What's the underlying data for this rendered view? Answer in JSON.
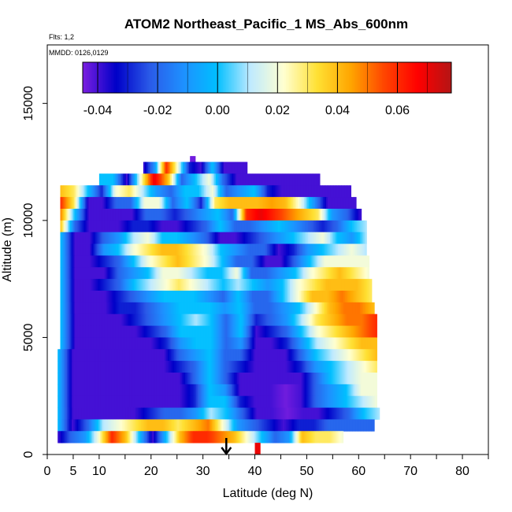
{
  "chart_data": {
    "type": "heatmap",
    "title": "ATOM2 Northeast_Pacific_1 MS_Abs_600nm",
    "flights_label": "Flts: 1,2",
    "dates_label": "MMDD: 0126,0129",
    "xlabel": "Latitude (deg N)",
    "ylabel": "Altitude (m)",
    "xlim": [
      0,
      85
    ],
    "ylim": [
      0,
      17500
    ],
    "xticks": [
      0,
      5,
      10,
      20,
      30,
      40,
      50,
      60,
      70,
      80
    ],
    "xtick_labels": [
      "0",
      "5",
      "10",
      "20",
      "30",
      "40",
      "50",
      "60",
      "70",
      "80"
    ],
    "yticks": [
      0,
      5000,
      10000,
      15000
    ],
    "ytick_labels": [
      "0",
      "5000",
      "10000",
      "15000"
    ],
    "colorbar": {
      "range": [
        -0.045,
        0.078
      ],
      "ticks": [
        -0.04,
        -0.02,
        0.0,
        0.02,
        0.04,
        0.06
      ],
      "tick_labels": [
        "-0.04",
        "-0.02",
        "0.00",
        "0.02",
        "0.04",
        "0.06"
      ],
      "colors": [
        "#7b1fe0",
        "#0000c8",
        "#2a5ae8",
        "#1e90ff",
        "#00bfff",
        "#bfeaff",
        "#ffffd0",
        "#ffe033",
        "#ffa500",
        "#ff4500",
        "#ff0000",
        "#b41414"
      ]
    },
    "marker": {
      "x": 34.5,
      "label": "arrow"
    },
    "rows": [
      {
        "alt": 12500,
        "x0": 27.5,
        "x1": 28.5,
        "v": [
          -0.044
        ]
      },
      {
        "alt": 12250,
        "x0": 18.5,
        "x1": 38.5,
        "v": [
          -0.04,
          -0.01,
          0.06,
          0.02,
          -0.03,
          -0.04,
          0.0,
          -0.04,
          -0.04,
          -0.04
        ]
      },
      {
        "alt": 11750,
        "x0": 10,
        "x1": 52.5,
        "v": [
          0.0,
          0.0,
          -0.04,
          0.02,
          0.07,
          0.04,
          -0.02,
          0.0,
          0.02,
          -0.02,
          -0.04,
          -0.04,
          -0.04,
          -0.04,
          -0.04,
          -0.04,
          -0.04
        ]
      },
      {
        "alt": 11250,
        "x0": 2.5,
        "x1": 58.5,
        "v": [
          0.04,
          0.03,
          0.0,
          -0.03,
          0.02,
          0.03,
          0.01,
          -0.01,
          -0.02,
          0.0,
          0.0,
          0.02,
          -0.02,
          -0.01,
          0.0,
          -0.03,
          -0.04,
          -0.04,
          -0.04,
          -0.04,
          -0.04,
          -0.04
        ]
      },
      {
        "alt": 10750,
        "x0": 2.5,
        "x1": 59.5,
        "v": [
          0.06,
          0.03,
          -0.04,
          -0.04,
          -0.02,
          -0.02,
          0.02,
          0.02,
          -0.02,
          0.0,
          -0.03,
          0.03,
          0.04,
          0.04,
          0.04,
          0.045,
          0.04,
          0.02,
          -0.01,
          -0.04,
          -0.04,
          -0.04
        ]
      },
      {
        "alt": 10250,
        "x0": 2.5,
        "x1": 60.5,
        "v": [
          0.05,
          0.0,
          -0.04,
          -0.04,
          -0.04,
          -0.04,
          -0.02,
          -0.02,
          -0.03,
          -0.02,
          -0.01,
          0.0,
          -0.02,
          0.06,
          0.07,
          0.06,
          0.05,
          0.04,
          0.03,
          -0.01,
          -0.02,
          -0.04
        ]
      },
      {
        "alt": 9750,
        "x0": 2.5,
        "x1": 61.5,
        "v": [
          0.04,
          -0.02,
          -0.04,
          -0.04,
          -0.04,
          -0.03,
          -0.03,
          -0.04,
          -0.04,
          -0.03,
          -0.02,
          0.0,
          -0.02,
          -0.02,
          -0.01,
          0.0,
          -0.01,
          -0.02,
          -0.03,
          -0.02,
          0.0,
          0.01
        ]
      },
      {
        "alt": 9250,
        "x0": 2.5,
        "x1": 61.5,
        "v": [
          0.0,
          -0.04,
          -0.04,
          -0.02,
          -0.01,
          0.01,
          0.02,
          0.0,
          0.0,
          -0.01,
          -0.02,
          -0.04,
          -0.04,
          -0.03,
          -0.02,
          -0.01,
          0.0,
          0.01,
          0.02,
          0.0,
          -0.01,
          0.01
        ]
      },
      {
        "alt": 8750,
        "x0": 2.5,
        "x1": 61.5,
        "v": [
          0.0,
          -0.04,
          -0.04,
          -0.01,
          0.0,
          0.02,
          0.03,
          0.04,
          0.04,
          0.03,
          0.02,
          0.0,
          -0.01,
          -0.02,
          -0.02,
          -0.04,
          -0.03,
          -0.01,
          0.0,
          0.01,
          0.02,
          0.01
        ]
      },
      {
        "alt": 8250,
        "x0": 2.5,
        "x1": 62,
        "v": [
          0.0,
          -0.04,
          -0.04,
          -0.03,
          -0.02,
          0.0,
          0.02,
          0.03,
          0.04,
          0.03,
          0.02,
          0.0,
          -0.02,
          -0.02,
          -0.04,
          -0.04,
          -0.02,
          0.0,
          0.02,
          0.02,
          0.02,
          0.02
        ]
      },
      {
        "alt": 7750,
        "x0": 2.5,
        "x1": 62,
        "v": [
          0.0,
          -0.04,
          -0.04,
          -0.04,
          -0.02,
          -0.01,
          0.0,
          0.02,
          0.02,
          0.01,
          0.0,
          0.0,
          0.02,
          -0.02,
          -0.02,
          -0.01,
          0.0,
          0.02,
          0.03,
          0.04,
          0.03,
          0.02
        ]
      },
      {
        "alt": 7250,
        "x0": 2.5,
        "x1": 62.5,
        "v": [
          0.0,
          -0.04,
          -0.04,
          -0.03,
          -0.02,
          0.0,
          0.01,
          0.02,
          0.03,
          0.02,
          0.01,
          0.0,
          0.01,
          0.0,
          -0.01,
          0.0,
          0.02,
          0.03,
          0.04,
          0.04,
          0.04,
          0.03
        ]
      },
      {
        "alt": 6750,
        "x0": 2.5,
        "x1": 62.5,
        "v": [
          0.0,
          -0.04,
          -0.04,
          -0.04,
          -0.03,
          -0.02,
          -0.01,
          0.0,
          0.0,
          0.0,
          -0.01,
          -0.02,
          0.0,
          -0.02,
          -0.02,
          0.0,
          0.02,
          0.04,
          0.04,
          0.05,
          0.04,
          0.03
        ]
      },
      {
        "alt": 6250,
        "x0": 2.5,
        "x1": 63,
        "v": [
          0.0,
          -0.04,
          -0.04,
          -0.04,
          -0.03,
          -0.03,
          -0.02,
          -0.01,
          0.0,
          0.0,
          0.0,
          -0.01,
          0.0,
          -0.02,
          -0.02,
          -0.01,
          0.0,
          0.02,
          0.04,
          0.05,
          0.05,
          0.04
        ]
      },
      {
        "alt": 5750,
        "x0": 2.5,
        "x1": 63.5,
        "v": [
          0.0,
          -0.04,
          -0.04,
          -0.04,
          -0.04,
          -0.03,
          -0.02,
          -0.01,
          0.0,
          0.01,
          0.0,
          -0.02,
          0.0,
          -0.03,
          -0.02,
          -0.01,
          0.01,
          0.03,
          0.04,
          0.05,
          0.05,
          0.06
        ]
      },
      {
        "alt": 5250,
        "x0": 2.5,
        "x1": 63.5,
        "v": [
          0.0,
          -0.04,
          -0.04,
          -0.04,
          -0.04,
          -0.04,
          -0.03,
          -0.02,
          0.0,
          0.0,
          0.0,
          -0.02,
          0.0,
          -0.04,
          -0.03,
          -0.02,
          0.0,
          0.02,
          0.03,
          0.04,
          0.05,
          0.06
        ]
      },
      {
        "alt": 4750,
        "x0": 2.5,
        "x1": 63.5,
        "v": [
          0.0,
          -0.04,
          -0.04,
          -0.04,
          -0.04,
          -0.04,
          -0.04,
          -0.03,
          -0.01,
          0.0,
          0.0,
          -0.02,
          -0.01,
          -0.04,
          -0.04,
          -0.03,
          -0.01,
          0.01,
          0.02,
          0.03,
          0.04,
          0.04
        ]
      },
      {
        "alt": 4250,
        "x0": 2,
        "x1": 63.5,
        "v": [
          0.0,
          -0.04,
          -0.04,
          -0.04,
          -0.04,
          -0.04,
          -0.04,
          -0.04,
          -0.02,
          -0.01,
          0.0,
          -0.02,
          -0.02,
          -0.04,
          -0.04,
          -0.04,
          -0.02,
          0.0,
          0.01,
          0.02,
          0.03,
          0.04
        ]
      },
      {
        "alt": 3750,
        "x0": 2,
        "x1": 63.5,
        "v": [
          0.0,
          -0.04,
          -0.04,
          -0.04,
          -0.04,
          -0.04,
          -0.04,
          -0.04,
          -0.03,
          -0.02,
          0.0,
          -0.02,
          -0.03,
          -0.04,
          -0.04,
          -0.04,
          -0.03,
          -0.01,
          0.0,
          0.01,
          0.02,
          0.03
        ]
      },
      {
        "alt": 3250,
        "x0": 2,
        "x1": 63.5,
        "v": [
          0.0,
          -0.04,
          -0.04,
          -0.04,
          -0.04,
          -0.04,
          -0.04,
          -0.04,
          -0.04,
          -0.02,
          0.0,
          -0.02,
          -0.04,
          -0.04,
          -0.04,
          -0.04,
          -0.04,
          -0.02,
          0.0,
          0.01,
          0.02,
          0.02
        ]
      },
      {
        "alt": 2750,
        "x0": 2,
        "x1": 63.5,
        "v": [
          0.0,
          -0.04,
          -0.04,
          -0.04,
          -0.04,
          -0.04,
          -0.04,
          -0.04,
          -0.04,
          -0.03,
          0.0,
          -0.01,
          -0.04,
          -0.04,
          -0.04,
          -0.044,
          -0.04,
          -0.02,
          -0.01,
          0.0,
          0.02,
          0.02
        ]
      },
      {
        "alt": 2250,
        "x0": 2,
        "x1": 63.5,
        "v": [
          0.0,
          -0.04,
          -0.04,
          -0.04,
          -0.04,
          -0.04,
          -0.04,
          -0.04,
          -0.04,
          -0.03,
          0.0,
          0.0,
          -0.03,
          -0.04,
          -0.04,
          -0.044,
          -0.04,
          -0.02,
          -0.01,
          0.0,
          0.01,
          0.02
        ]
      },
      {
        "alt": 1750,
        "x0": 2,
        "x1": 64,
        "v": [
          0.0,
          -0.04,
          -0.04,
          -0.04,
          -0.04,
          -0.04,
          -0.03,
          -0.02,
          -0.02,
          -0.01,
          0.01,
          0.0,
          -0.02,
          -0.04,
          -0.04,
          -0.044,
          -0.04,
          -0.04,
          -0.03,
          -0.02,
          0.0,
          0.01
        ]
      },
      {
        "alt": 1250,
        "x0": 2,
        "x1": 63,
        "v": [
          0.0,
          -0.04,
          -0.02,
          0.01,
          0.02,
          0.03,
          0.04,
          0.04,
          0.03,
          0.04,
          0.05,
          0.02,
          -0.01,
          -0.02,
          -0.03,
          -0.04,
          -0.03,
          -0.03,
          -0.02,
          -0.02,
          -0.02,
          -0.02
        ]
      },
      {
        "alt": 750,
        "x0": 2,
        "x1": 57,
        "v": [
          -0.04,
          -0.02,
          -0.01,
          0.02,
          0.06,
          0.04,
          0.0,
          -0.04,
          0.0,
          0.04,
          0.06,
          0.06,
          0.05,
          0.04,
          0.02,
          0.0,
          -0.02,
          -0.01,
          0.04,
          0.03,
          0.03,
          0.02
        ]
      },
      {
        "alt": 250,
        "x0": 40,
        "x1": 41,
        "v": [
          0.07
        ]
      }
    ]
  }
}
